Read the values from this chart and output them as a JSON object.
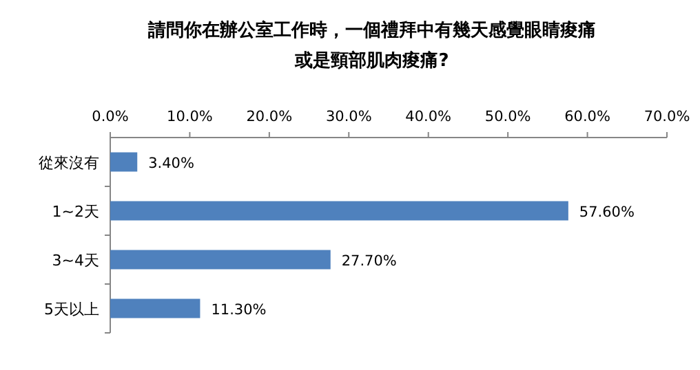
{
  "chart_data": {
    "type": "bar",
    "orientation": "horizontal",
    "title": "請問你在辦公室工作時，一個禮拜中有幾天感覺眼睛痠痛或是頸部肌肉痠痛?",
    "categories": [
      "從來沒有",
      "1~2天",
      "3~4天",
      "5天以上"
    ],
    "values": [
      3.4,
      57.6,
      27.7,
      11.3
    ],
    "value_labels": [
      "3.40%",
      "57.60%",
      "27.70%",
      "11.30%"
    ],
    "color": "#4f81bd",
    "xlim": [
      0,
      70
    ],
    "xticks": [
      {
        "value": 0,
        "label": "0.0%"
      },
      {
        "value": 10,
        "label": "10.0%"
      },
      {
        "value": 20,
        "label": "20.0%"
      },
      {
        "value": 30,
        "label": "30.0%"
      },
      {
        "value": 40,
        "label": "40.0%"
      },
      {
        "value": 50,
        "label": "50.0%"
      },
      {
        "value": 60,
        "label": "60.0%"
      },
      {
        "value": 70,
        "label": "70.0%"
      }
    ]
  }
}
